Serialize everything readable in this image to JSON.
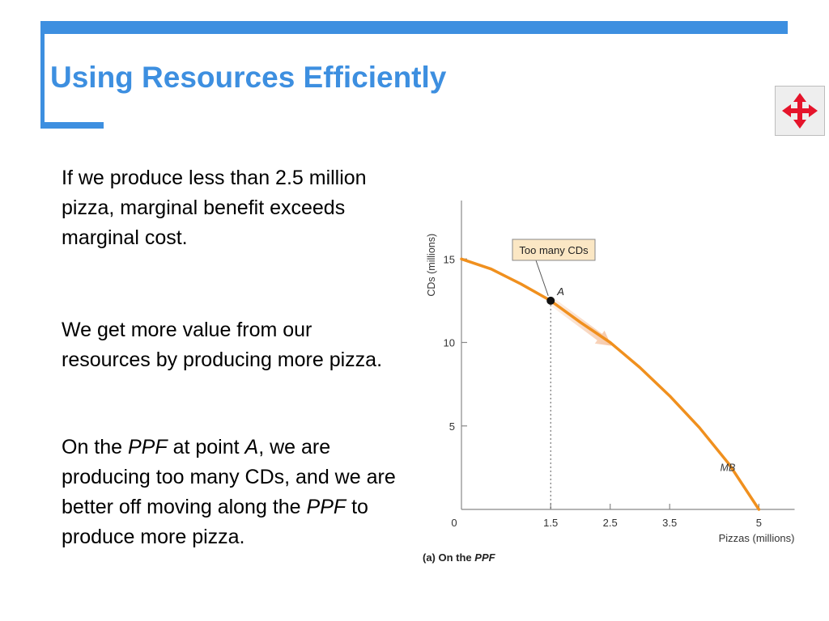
{
  "slide": {
    "title": "Using Resources Efficiently",
    "accent_color": "#3D8FE0",
    "nav_icon": "four-way-arrows-icon",
    "nav_icon_color": "#E5142B"
  },
  "body": {
    "paragraph1": "If we produce less than 2.5 million pizza, marginal benefit exceeds marginal cost.",
    "paragraph2": "We get more value from our resources by producing more pizza.",
    "paragraph3": {
      "seg1": "On the ",
      "ppf1": "PPF",
      "seg2": " at point ",
      "pointA": "A",
      "seg3": ", we are producing too many CDs, and we are better off moving along the ",
      "ppf2": "PPF",
      "seg4": " to produce more pizza."
    }
  },
  "chart_data": {
    "type": "line",
    "caption_prefix": "(a) On the ",
    "caption_emph": "PPF",
    "xlabel": "Pizzas (millions)",
    "ylabel": "CDs (millions)",
    "xlim": [
      0,
      5.6
    ],
    "ylim": [
      0,
      18.5
    ],
    "x_ticks": [
      "1.5",
      "2.5",
      "3.5",
      "5"
    ],
    "x_tick_values": [
      1.5,
      2.5,
      3.5,
      5
    ],
    "y_ticks": [
      "5",
      "10",
      "15"
    ],
    "y_tick_values": [
      5,
      10,
      15
    ],
    "origin_label": "0",
    "series": [
      {
        "name": "MB",
        "color": "#F0901E",
        "x": [
          0,
          0.5,
          1.0,
          1.5,
          2.0,
          2.5,
          3.0,
          3.5,
          4.0,
          4.5,
          5.0
        ],
        "y": [
          15,
          14.4,
          13.5,
          12.5,
          11.2,
          10.0,
          8.5,
          6.8,
          4.9,
          2.7,
          0
        ]
      }
    ],
    "point": {
      "label": "A",
      "x": 1.5,
      "y": 12.5
    },
    "callout": "Too many CDs",
    "arrow_color": "#F6C8A8"
  }
}
